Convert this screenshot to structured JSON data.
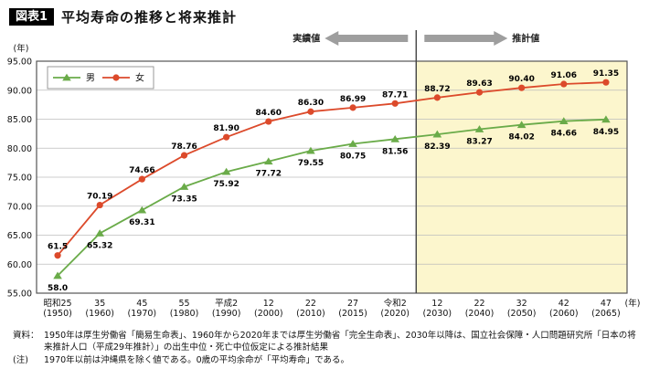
{
  "header": {
    "badge": "図表1"
  },
  "chart_data": {
    "type": "line",
    "title": "平均寿命の推移と将来推計",
    "y_unit": "(年)",
    "x_unit": "(年)",
    "ylim": [
      55,
      95
    ],
    "ytick_step": 5,
    "grid_on": true,
    "grid_color": "#bdbdbd",
    "border_color": "#555555",
    "projection_bg": "#fcf6cd",
    "arrow_color": "#9e9e9e",
    "legend_position": "top-left-inside",
    "divider_after_index": 8,
    "annotations": {
      "actual_label": "実績値",
      "projection_label": "推計値"
    },
    "categories": [
      {
        "era": "昭和25",
        "year": "(1950)"
      },
      {
        "era": "35",
        "year": "(1960)"
      },
      {
        "era": "45",
        "year": "(1970)"
      },
      {
        "era": "55",
        "year": "(1980)"
      },
      {
        "era": "平成2",
        "year": "(1990)"
      },
      {
        "era": "12",
        "year": "(2000)"
      },
      {
        "era": "22",
        "year": "(2010)"
      },
      {
        "era": "27",
        "year": "(2015)"
      },
      {
        "era": "令和2",
        "year": "(2020)"
      },
      {
        "era": "12",
        "year": "(2030)"
      },
      {
        "era": "22",
        "year": "(2040)"
      },
      {
        "era": "32",
        "year": "(2050)"
      },
      {
        "era": "42",
        "year": "(2060)"
      },
      {
        "era": "47",
        "year": "(2065)"
      }
    ],
    "series": [
      {
        "id": "men",
        "name": "男",
        "color": "#6aab49",
        "marker": "triangle",
        "label_position": "below",
        "values": [
          58.0,
          65.32,
          69.31,
          73.35,
          75.92,
          77.72,
          79.55,
          80.75,
          81.56,
          82.39,
          83.27,
          84.02,
          84.66,
          84.95
        ],
        "labels": [
          "58.0",
          "65.32",
          "69.31",
          "73.35",
          "75.92",
          "77.72",
          "79.55",
          "80.75",
          "81.56",
          "82.39",
          "83.27",
          "84.02",
          "84.66",
          "84.95"
        ]
      },
      {
        "id": "women",
        "name": "女",
        "color": "#dc4a2b",
        "marker": "circle",
        "label_position": "above",
        "values": [
          61.5,
          70.19,
          74.66,
          78.76,
          81.9,
          84.6,
          86.3,
          86.99,
          87.71,
          88.72,
          89.63,
          90.4,
          91.06,
          91.35
        ],
        "labels": [
          "61.5",
          "70.19",
          "74.66",
          "78.76",
          "81.90",
          "84.60",
          "86.30",
          "86.99",
          "87.71",
          "88.72",
          "89.63",
          "90.40",
          "91.06",
          "91.35"
        ]
      }
    ]
  },
  "footer": {
    "source_label": "資料：",
    "source_text": "1950年は厚生労働省「簡易生命表」、1960年から2020年までは厚生労働省「完全生命表」、2030年以降は、国立社会保障・人口問題研究所「日本の将来推計人口（平成29年推計）」の出生中位・死亡中位仮定による推計結果",
    "note_label": "(注)",
    "note_text": "1970年以前は沖縄県を除く値である。0歳の平均余命が「平均寿命」である。"
  }
}
